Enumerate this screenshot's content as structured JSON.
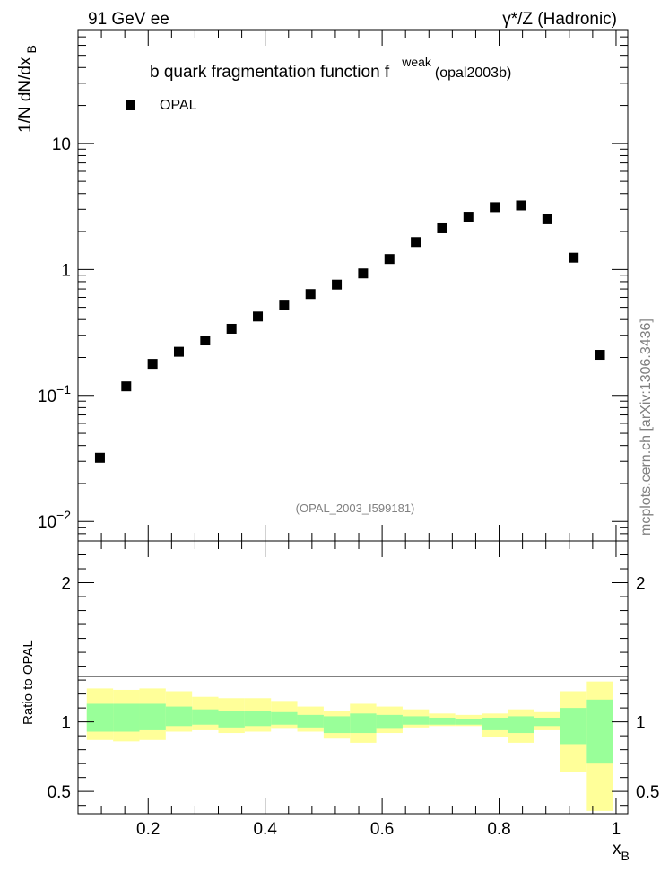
{
  "header": {
    "left": "91 GeV ee",
    "right": "γ*/Z (Hadronic)"
  },
  "watermark": "mcplots.cern.ch [arXiv:1306.3436]",
  "chart_data": [
    {
      "type": "scatter",
      "title_main": "b quark fragmentation function f",
      "title_sup": "weak",
      "title_tail": "(opal2003b)",
      "ylabel_main": "1/N dN/dx",
      "ylabel_sub": "B",
      "yscale": "log",
      "xlim": [
        0.08,
        1.02
      ],
      "ylim": [
        0.007,
        80
      ],
      "ytick_base": "10",
      "ytick_labels": [
        {
          "value": 0.01,
          "label": "10",
          "exp": "−2"
        },
        {
          "value": 0.1,
          "label": "10",
          "exp": "−1"
        },
        {
          "value": 1,
          "label": "1",
          "exp": ""
        },
        {
          "value": 10,
          "label": "10",
          "exp": ""
        }
      ],
      "legend_label": "OPAL",
      "legend_position": "top-left",
      "reference": "(OPAL_2003_I599181)",
      "series": [
        {
          "name": "OPAL",
          "marker": "square",
          "x": [
            0.1175,
            0.1625,
            0.2075,
            0.2525,
            0.2975,
            0.3425,
            0.3875,
            0.4325,
            0.4775,
            0.5225,
            0.5675,
            0.6125,
            0.6575,
            0.7025,
            0.7475,
            0.7925,
            0.8375,
            0.8825,
            0.9275,
            0.9725
          ],
          "y": [
            0.032,
            0.118,
            0.178,
            0.222,
            0.273,
            0.338,
            0.423,
            0.525,
            0.638,
            0.758,
            0.93,
            1.21,
            1.65,
            2.12,
            2.62,
            3.12,
            3.22,
            2.5,
            1.24,
            0.21
          ]
        }
      ]
    },
    {
      "type": "area",
      "ylabel": "Ratio to OPAL",
      "xlabel_main": "x",
      "xlabel_sub": "B",
      "xlim": [
        0.08,
        1.02
      ],
      "ylim": [
        0.34,
        2.3
      ],
      "xtick_labels": [
        "0.2",
        "0.4",
        "0.6",
        "0.8",
        "1"
      ],
      "ytick_labels": [
        "0.5",
        "1",
        "2"
      ],
      "bin_edges": [
        0.095,
        0.14,
        0.185,
        0.23,
        0.275,
        0.32,
        0.365,
        0.41,
        0.455,
        0.5,
        0.545,
        0.59,
        0.635,
        0.68,
        0.725,
        0.77,
        0.815,
        0.86,
        0.905,
        0.95,
        0.995
      ],
      "series": [
        {
          "band": "outer",
          "color": "#ffff99",
          "low": [
            0.87,
            0.86,
            0.87,
            0.93,
            0.94,
            0.92,
            0.93,
            0.95,
            0.93,
            0.88,
            0.85,
            0.92,
            0.96,
            0.97,
            0.97,
            0.89,
            0.85,
            0.94,
            0.64,
            0.36
          ],
          "high": [
            1.24,
            1.23,
            1.24,
            1.22,
            1.18,
            1.17,
            1.17,
            1.15,
            1.11,
            1.08,
            1.13,
            1.11,
            1.09,
            1.06,
            1.05,
            1.06,
            1.09,
            1.07,
            1.22,
            1.29
          ]
        },
        {
          "band": "inner",
          "color": "#99ff99",
          "low": [
            0.93,
            0.93,
            0.94,
            0.97,
            0.98,
            0.96,
            0.97,
            0.98,
            0.96,
            0.92,
            0.92,
            0.95,
            0.98,
            0.98,
            0.98,
            0.94,
            0.92,
            0.97,
            0.84,
            0.7
          ],
          "high": [
            1.13,
            1.13,
            1.13,
            1.11,
            1.09,
            1.08,
            1.08,
            1.07,
            1.05,
            1.04,
            1.06,
            1.05,
            1.04,
            1.03,
            1.02,
            1.03,
            1.04,
            1.03,
            1.1,
            1.16
          ]
        }
      ]
    }
  ]
}
